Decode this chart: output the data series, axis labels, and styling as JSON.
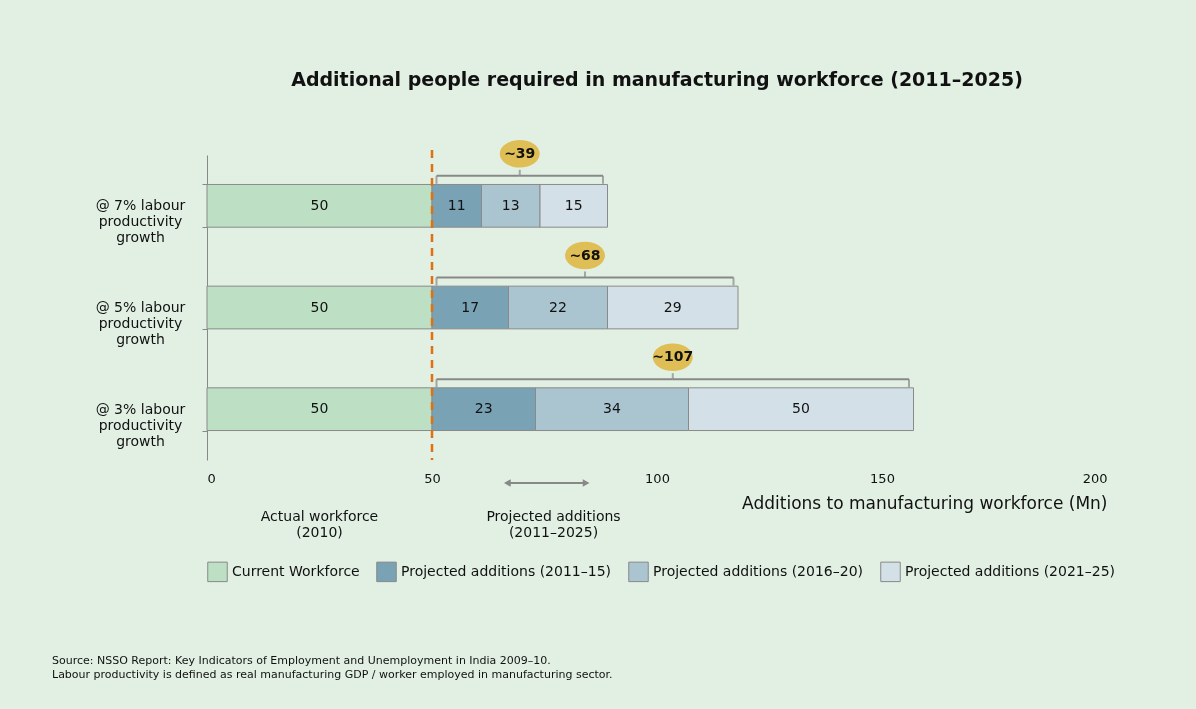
{
  "chart_data": {
    "type": "bar",
    "orientation": "horizontal",
    "stacked": true,
    "title": "Additional people required in manufacturing workforce (2011–2025)",
    "xlabel": "Additions to manufacturing workforce (Mn)",
    "categories": [
      "@ 7% labour\nproductivity\ngrowth",
      "@ 5% labour\nproductivity\ngrowth",
      "@ 3% labour\nproductivity\ngrowth"
    ],
    "series": [
      {
        "name": "Current Workforce",
        "color": "#bde0c5",
        "values": [
          50,
          50,
          50
        ]
      },
      {
        "name": "Projected additions (2011–15)",
        "color": "#79a2b4",
        "values": [
          11,
          17,
          23
        ]
      },
      {
        "name": "Projected additions (2016–20)",
        "color": "#aac5d0",
        "values": [
          13,
          22,
          34
        ]
      },
      {
        "name": "Projected additions (2021–25)",
        "color": "#d3e0e7",
        "values": [
          15,
          29,
          50
        ]
      }
    ],
    "xlim": [
      0,
      200
    ],
    "xticks": [
      0,
      50,
      100,
      150,
      200
    ],
    "grid": false,
    "legend": "bottom",
    "data_labels": true,
    "ref_lines": [
      {
        "axis": "x",
        "value": 50,
        "color": "#e07010",
        "line_style": "dashed"
      }
    ],
    "annotations": [
      "~39",
      "~68",
      "~107",
      "Actual workforce\n(2010)",
      "Projected additions\n(2011–2025)",
      "Source: NSSO Report: Key Indicators of Employment and Unemployment in India 2009–10.",
      "Labour productivity is defined as real manufacturing GDP / worker employed in manufacturing sector."
    ]
  }
}
